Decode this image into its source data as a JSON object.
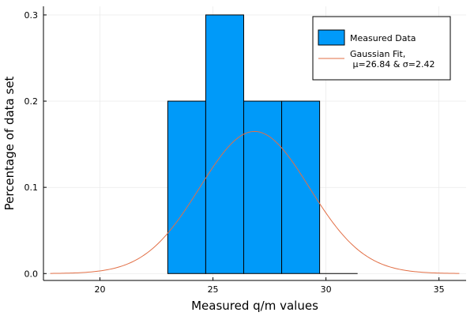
{
  "chart_data": {
    "type": "bar",
    "xlabel": "Measured q/m values",
    "ylabel": "Percentage of data set",
    "xlim": [
      17.5,
      36.2
    ],
    "ylim": [
      -0.008,
      0.31
    ],
    "xticks": [
      {
        "value": 20,
        "label": "20"
      },
      {
        "value": 25,
        "label": "25"
      },
      {
        "value": 30,
        "label": "30"
      },
      {
        "value": 35,
        "label": "35"
      }
    ],
    "yticks": [
      {
        "value": 0.0,
        "label": "0.0"
      },
      {
        "value": 0.1,
        "label": "0.1"
      },
      {
        "value": 0.2,
        "label": "0.2"
      },
      {
        "value": 0.3,
        "label": "0.3"
      }
    ],
    "grid": true,
    "legend_position": "top-right",
    "bars": [
      {
        "x0": 23.0,
        "x1": 24.68,
        "value": 0.2
      },
      {
        "x0": 24.68,
        "x1": 26.36,
        "value": 0.3
      },
      {
        "x0": 26.36,
        "x1": 28.04,
        "value": 0.2
      },
      {
        "x0": 28.04,
        "x1": 29.72,
        "value": 0.2
      },
      {
        "x0": 29.72,
        "x1": 31.4,
        "value": 0.0
      }
    ],
    "fit": {
      "mu": 26.84,
      "sigma": 2.42,
      "x_range": [
        17.8,
        35.9
      ]
    },
    "series": [
      {
        "name": "Measured Data",
        "kind": "histogram",
        "color": "#009af9"
      },
      {
        "name": "Gaussian Fit,\n μ=26.84 & σ=2.42",
        "kind": "line",
        "color": "#e26f46"
      }
    ],
    "legend_lines": [
      "Measured Data",
      "Gaussian Fit,",
      " μ=26.84 & σ=2.42"
    ]
  }
}
